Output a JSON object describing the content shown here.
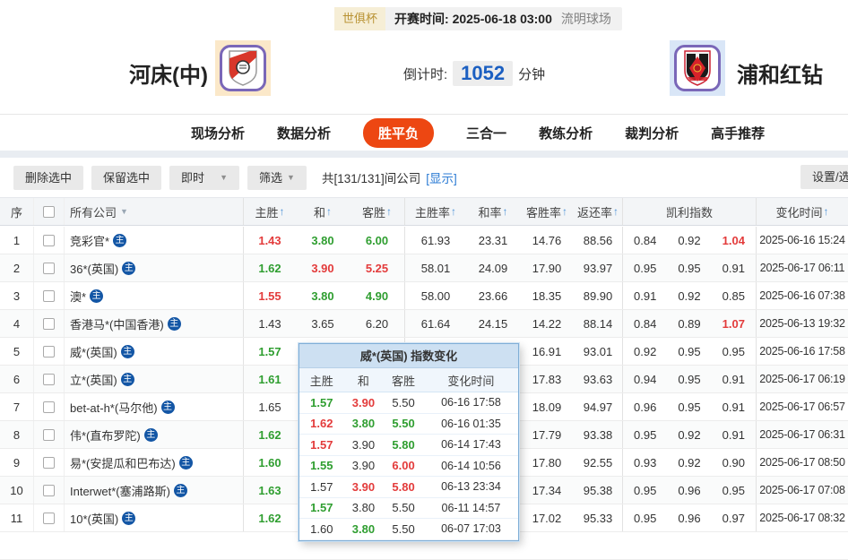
{
  "match_header": {
    "league_badge": "世俱杯",
    "kickoff": "开赛时间: 2025-06-18 03:00",
    "venue": "流明球场",
    "home_team": "河床(中)",
    "away_team": "浦和红钻",
    "countdown_label": "倒计时:",
    "countdown_value": "1052",
    "countdown_unit": "分钟"
  },
  "nav": {
    "tabs": [
      {
        "label": "现场分析",
        "active": false
      },
      {
        "label": "数据分析",
        "active": false
      },
      {
        "label": "胜平负",
        "active": true
      },
      {
        "label": "三合一",
        "active": false
      },
      {
        "label": "教练分析",
        "active": false
      },
      {
        "label": "裁判分析",
        "active": false
      },
      {
        "label": "高手推荐",
        "active": false
      }
    ]
  },
  "toolbar": {
    "delete_btn": "删除选中",
    "keep_btn": "保留选中",
    "instant_dd": "即时",
    "filter_dd": "筛选",
    "count_text": "共[131/131]间公司",
    "show_link": "[显示]",
    "settings_btn": "设置/选择"
  },
  "table": {
    "columns": {
      "seq": "序",
      "company": "所有公司",
      "home": "主胜",
      "draw": "和",
      "away": "客胜",
      "home_rate": "主胜率",
      "draw_rate": "和率",
      "away_rate": "客胜率",
      "return_rate": "返还率",
      "kelly": "凯利指数",
      "time": "变化时间"
    },
    "company_badge": "主",
    "rows": [
      {
        "seq": "1",
        "company": "竞彩官*",
        "odds": [
          {
            "v": "1.43",
            "c": "red"
          },
          {
            "v": "3.80",
            "c": "green"
          },
          {
            "v": "6.00",
            "c": "green"
          }
        ],
        "rates": [
          "61.93",
          "23.31",
          "14.76",
          "88.56"
        ],
        "kelly": [
          {
            "v": "0.84",
            "c": "v"
          },
          {
            "v": "0.92",
            "c": "v"
          },
          {
            "v": "1.04",
            "c": "red"
          }
        ],
        "time": "2025-06-16 15:24"
      },
      {
        "seq": "2",
        "company": "36*(英国)",
        "odds": [
          {
            "v": "1.62",
            "c": "green"
          },
          {
            "v": "3.90",
            "c": "red"
          },
          {
            "v": "5.25",
            "c": "red"
          }
        ],
        "rates": [
          "58.01",
          "24.09",
          "17.90",
          "93.97"
        ],
        "kelly": [
          {
            "v": "0.95",
            "c": "v"
          },
          {
            "v": "0.95",
            "c": "v"
          },
          {
            "v": "0.91",
            "c": "v"
          }
        ],
        "time": "2025-06-17 06:11"
      },
      {
        "seq": "3",
        "company": "澳*",
        "odds": [
          {
            "v": "1.55",
            "c": "red"
          },
          {
            "v": "3.80",
            "c": "green"
          },
          {
            "v": "4.90",
            "c": "green"
          }
        ],
        "rates": [
          "58.00",
          "23.66",
          "18.35",
          "89.90"
        ],
        "kelly": [
          {
            "v": "0.91",
            "c": "v"
          },
          {
            "v": "0.92",
            "c": "v"
          },
          {
            "v": "0.85",
            "c": "v"
          }
        ],
        "time": "2025-06-16 07:38"
      },
      {
        "seq": "4",
        "company": "香港马*(中国香港)",
        "odds": [
          {
            "v": "1.43",
            "c": "v"
          },
          {
            "v": "3.65",
            "c": "v"
          },
          {
            "v": "6.20",
            "c": "v"
          }
        ],
        "rates": [
          "61.64",
          "24.15",
          "14.22",
          "88.14"
        ],
        "kelly": [
          {
            "v": "0.84",
            "c": "v"
          },
          {
            "v": "0.89",
            "c": "v"
          },
          {
            "v": "1.07",
            "c": "red"
          }
        ],
        "time": "2025-06-13 19:32"
      },
      {
        "seq": "5",
        "company": "威*(英国)",
        "odds": [
          {
            "v": "1.57",
            "c": "green"
          },
          {
            "v": "",
            "c": "v"
          },
          {
            "v": "",
            "c": "v"
          }
        ],
        "rates": [
          "",
          "",
          "16.91",
          "93.01"
        ],
        "kelly": [
          {
            "v": "0.92",
            "c": "v"
          },
          {
            "v": "0.95",
            "c": "v"
          },
          {
            "v": "0.95",
            "c": "v"
          }
        ],
        "time": "2025-06-16 17:58"
      },
      {
        "seq": "6",
        "company": "立*(英国)",
        "odds": [
          {
            "v": "1.61",
            "c": "green"
          },
          {
            "v": "",
            "c": "v"
          },
          {
            "v": "",
            "c": "v"
          }
        ],
        "rates": [
          "",
          "",
          "17.83",
          "93.63"
        ],
        "kelly": [
          {
            "v": "0.94",
            "c": "v"
          },
          {
            "v": "0.95",
            "c": "v"
          },
          {
            "v": "0.91",
            "c": "v"
          }
        ],
        "time": "2025-06-17 06:19"
      },
      {
        "seq": "7",
        "company": "bet-at-h*(马尔他)",
        "odds": [
          {
            "v": "1.65",
            "c": "v"
          },
          {
            "v": "",
            "c": "v"
          },
          {
            "v": "",
            "c": "v"
          }
        ],
        "rates": [
          "",
          "",
          "18.09",
          "94.97"
        ],
        "kelly": [
          {
            "v": "0.96",
            "c": "v"
          },
          {
            "v": "0.95",
            "c": "v"
          },
          {
            "v": "0.91",
            "c": "v"
          }
        ],
        "time": "2025-06-17 06:57"
      },
      {
        "seq": "8",
        "company": "伟*(直布罗陀)",
        "odds": [
          {
            "v": "1.62",
            "c": "green"
          },
          {
            "v": "",
            "c": "v"
          },
          {
            "v": "",
            "c": "v"
          }
        ],
        "rates": [
          "",
          "",
          "17.79",
          "93.38"
        ],
        "kelly": [
          {
            "v": "0.95",
            "c": "v"
          },
          {
            "v": "0.92",
            "c": "v"
          },
          {
            "v": "0.91",
            "c": "v"
          }
        ],
        "time": "2025-06-17 06:31"
      },
      {
        "seq": "9",
        "company": "易*(安提瓜和巴布达)",
        "odds": [
          {
            "v": "1.60",
            "c": "green"
          },
          {
            "v": "",
            "c": "v"
          },
          {
            "v": "",
            "c": "v"
          }
        ],
        "rates": [
          "",
          "",
          "17.80",
          "92.55"
        ],
        "kelly": [
          {
            "v": "0.93",
            "c": "v"
          },
          {
            "v": "0.92",
            "c": "v"
          },
          {
            "v": "0.90",
            "c": "v"
          }
        ],
        "time": "2025-06-17 08:50"
      },
      {
        "seq": "10",
        "company": "Interwet*(塞浦路斯)",
        "odds": [
          {
            "v": "1.63",
            "c": "green"
          },
          {
            "v": "",
            "c": "v"
          },
          {
            "v": "",
            "c": "v"
          }
        ],
        "rates": [
          "",
          "",
          "17.34",
          "95.38"
        ],
        "kelly": [
          {
            "v": "0.95",
            "c": "v"
          },
          {
            "v": "0.96",
            "c": "v"
          },
          {
            "v": "0.95",
            "c": "v"
          }
        ],
        "time": "2025-06-17 07:08"
      },
      {
        "seq": "11",
        "company": "10*(英国)",
        "odds": [
          {
            "v": "1.62",
            "c": "green"
          },
          {
            "v": "",
            "c": "v"
          },
          {
            "v": "",
            "c": "v"
          }
        ],
        "rates": [
          "",
          "",
          "17.02",
          "95.33"
        ],
        "kelly": [
          {
            "v": "0.95",
            "c": "v"
          },
          {
            "v": "0.96",
            "c": "v"
          },
          {
            "v": "0.97",
            "c": "v"
          }
        ],
        "time": "2025-06-17 08:32"
      }
    ]
  },
  "popup": {
    "title": "威*(英国) 指数变化",
    "columns": [
      "主胜",
      "和",
      "客胜",
      "变化时间"
    ],
    "rows": [
      [
        {
          "v": "1.57",
          "c": "green"
        },
        {
          "v": "3.90",
          "c": "red"
        },
        {
          "v": "5.50",
          "c": "v"
        },
        "06-16 17:58"
      ],
      [
        {
          "v": "1.62",
          "c": "red"
        },
        {
          "v": "3.80",
          "c": "green"
        },
        {
          "v": "5.50",
          "c": "green"
        },
        "06-16 01:35"
      ],
      [
        {
          "v": "1.57",
          "c": "red"
        },
        {
          "v": "3.90",
          "c": "v"
        },
        {
          "v": "5.80",
          "c": "green"
        },
        "06-14 17:43"
      ],
      [
        {
          "v": "1.55",
          "c": "green"
        },
        {
          "v": "3.90",
          "c": "v"
        },
        {
          "v": "6.00",
          "c": "red"
        },
        "06-14 10:56"
      ],
      [
        {
          "v": "1.57",
          "c": "v"
        },
        {
          "v": "3.90",
          "c": "red"
        },
        {
          "v": "5.80",
          "c": "red"
        },
        "06-13 23:34"
      ],
      [
        {
          "v": "1.57",
          "c": "green"
        },
        {
          "v": "3.80",
          "c": "v"
        },
        {
          "v": "5.50",
          "c": "v"
        },
        "06-11 14:57"
      ],
      [
        {
          "v": "1.60",
          "c": "v"
        },
        {
          "v": "3.80",
          "c": "green"
        },
        {
          "v": "5.50",
          "c": "v"
        },
        "06-07 17:03"
      ]
    ]
  },
  "colors": {
    "nav_active": "#ed4712",
    "odds_up_green": "#2f9e30",
    "odds_down_red": "#e33b3b",
    "link_blue": "#2b7bd4",
    "countdown_blue": "#1b5fc1",
    "company_badge_blue": "#1356a5"
  }
}
